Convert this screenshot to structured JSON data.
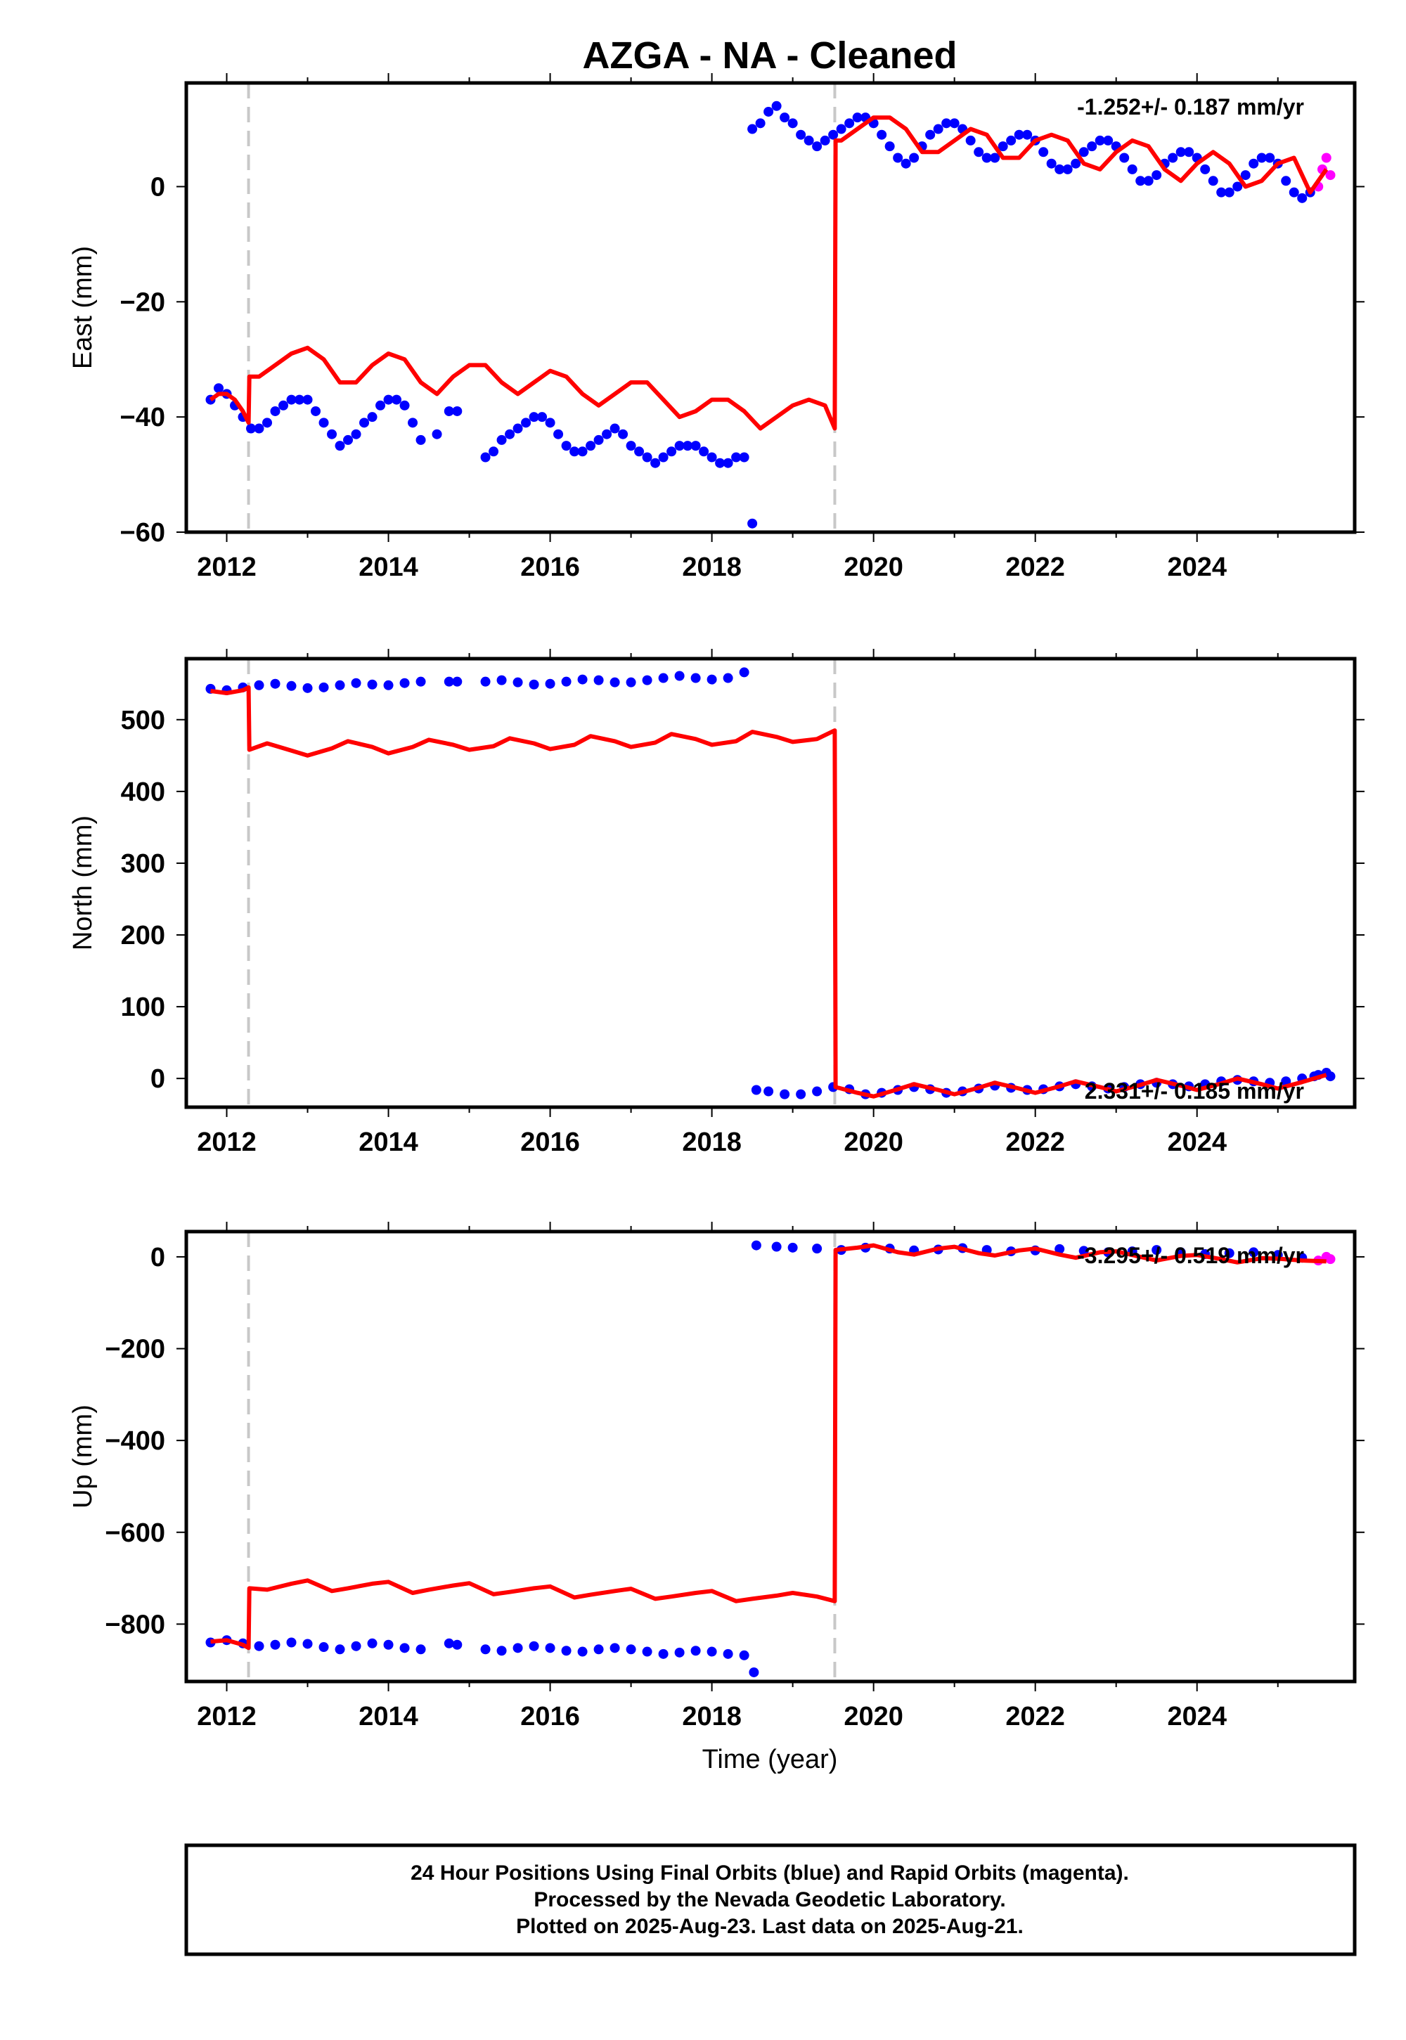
{
  "title": "AZGA  - NA - Cleaned",
  "xlabel": "Time (year)",
  "colors": {
    "final": "#0000ff",
    "rapid": "#ff00ff",
    "model": "#ff0000",
    "break": "#c8c8c8"
  },
  "chart_data": [
    {
      "type": "scatter",
      "ylabel": "East (mm)",
      "rate_text": "-1.252+/- 0.187 mm/yr",
      "xlim": [
        2011.5,
        2025.95
      ],
      "ylim": [
        -60,
        18
      ],
      "xticks": [
        "2012",
        "2014",
        "2016",
        "2018",
        "2020",
        "2022",
        "2024"
      ],
      "yticks": [
        "0",
        "−20",
        "−40",
        "−60"
      ],
      "breaks": [
        2012.27,
        2019.52
      ],
      "series": [
        {
          "x": [
            2011.8,
            2011.9,
            2012.0,
            2012.1,
            2012.2,
            2012.3,
            2012.4,
            2012.5,
            2012.6,
            2012.7,
            2012.8,
            2012.9,
            2013.0,
            2013.1,
            2013.2,
            2013.3,
            2013.4,
            2013.5,
            2013.6,
            2013.7,
            2013.8,
            2013.9,
            2014.0,
            2014.1,
            2014.2,
            2014.3,
            2014.4,
            2014.6,
            2014.75,
            2014.85,
            2015.2,
            2015.3,
            2015.4,
            2015.5,
            2015.6,
            2015.7,
            2015.8,
            2015.9,
            2016.0,
            2016.1,
            2016.2,
            2016.3,
            2016.4,
            2016.5,
            2016.6,
            2016.7,
            2016.8,
            2016.9,
            2017.0,
            2017.1,
            2017.2,
            2017.3,
            2017.4,
            2017.5,
            2017.6,
            2017.7,
            2017.8,
            2017.9,
            2018.0,
            2018.1,
            2018.2,
            2018.3,
            2018.4,
            2018.5,
            2018.6,
            2018.7,
            2018.8,
            2018.9,
            2019.0,
            2019.1,
            2019.2,
            2019.3,
            2019.4,
            2019.5,
            2019.6,
            2019.7,
            2019.8,
            2019.9,
            2020.0,
            2020.1,
            2020.2,
            2020.3,
            2020.4,
            2020.5,
            2020.6,
            2020.7,
            2020.8,
            2020.9,
            2021.0,
            2021.1,
            2021.2,
            2021.3,
            2021.4,
            2021.5,
            2021.6,
            2021.7,
            2021.8,
            2021.9,
            2022.0,
            2022.1,
            2022.2,
            2022.3,
            2022.4,
            2022.5,
            2022.6,
            2022.7,
            2022.8,
            2022.9,
            2023.0,
            2023.1,
            2023.2,
            2023.3,
            2023.4,
            2023.5,
            2023.6,
            2023.7,
            2023.8,
            2023.9,
            2024.0,
            2024.1,
            2024.2,
            2024.3,
            2024.4,
            2024.5,
            2024.6,
            2024.7,
            2024.8,
            2024.9,
            2025.0,
            2025.1,
            2025.2,
            2025.3,
            2025.4
          ],
          "y": [
            -37,
            -35,
            -36,
            -38,
            -40,
            -42,
            -42,
            -41,
            -39,
            -38,
            -37,
            -37,
            -37,
            -39,
            -41,
            -43,
            -45,
            -44,
            -43,
            -41,
            -40,
            -38,
            -37,
            -37,
            -38,
            -41,
            -44,
            -43,
            -39,
            -39,
            -47,
            -46,
            -44,
            -43,
            -42,
            -41,
            -40,
            -40,
            -41,
            -43,
            -45,
            -46,
            -46,
            -45,
            -44,
            -43,
            -42,
            -43,
            -45,
            -46,
            -47,
            -48,
            -47,
            -46,
            -45,
            -45,
            -45,
            -46,
            -47,
            -48,
            -48,
            -47,
            -47,
            10,
            11,
            13,
            14,
            12,
            11,
            9,
            8,
            7,
            8,
            9,
            10,
            11,
            12,
            12,
            11,
            9,
            7,
            5,
            4,
            5,
            7,
            9,
            10,
            11,
            11,
            10,
            8,
            6,
            5,
            5,
            7,
            8,
            9,
            9,
            8,
            6,
            4,
            3,
            3,
            4,
            6,
            7,
            8,
            8,
            7,
            5,
            3,
            1,
            1,
            2,
            4,
            5,
            6,
            6,
            5,
            3,
            1,
            -1,
            -1,
            0,
            2,
            4,
            5,
            5,
            4,
            1,
            -1,
            -2,
            -1
          ]
        },
        {
          "x": [
            2018.5
          ],
          "y": [
            -58.5
          ]
        },
        {
          "x": [
            2025.5,
            2025.55,
            2025.6,
            2025.65
          ],
          "y": [
            0,
            3,
            5,
            2
          ]
        }
      ],
      "model": {
        "x": [
          2011.8,
          2011.9,
          2012.0,
          2012.1,
          2012.2,
          2012.27,
          2012.28,
          2012.4,
          2012.6,
          2012.8,
          2013.0,
          2013.2,
          2013.4,
          2013.6,
          2013.8,
          2014.0,
          2014.2,
          2014.4,
          2014.6,
          2014.8,
          2015.0,
          2015.2,
          2015.4,
          2015.6,
          2015.8,
          2016.0,
          2016.2,
          2016.4,
          2016.6,
          2016.8,
          2017.0,
          2017.2,
          2017.4,
          2017.6,
          2017.8,
          2018.0,
          2018.2,
          2018.4,
          2018.6,
          2018.8,
          2019.0,
          2019.2,
          2019.4,
          2019.52,
          2019.53,
          2019.6,
          2019.8,
          2020.0,
          2020.2,
          2020.4,
          2020.6,
          2020.8,
          2021.0,
          2021.2,
          2021.4,
          2021.6,
          2021.8,
          2022.0,
          2022.2,
          2022.4,
          2022.6,
          2022.8,
          2023.0,
          2023.2,
          2023.4,
          2023.6,
          2023.8,
          2024.0,
          2024.2,
          2024.4,
          2024.6,
          2024.8,
          2025.0,
          2025.2,
          2025.4,
          2025.6
        ],
        "y": [
          -37,
          -36,
          -36,
          -37,
          -39,
          -41,
          -33,
          -33,
          -31,
          -29,
          -28,
          -30,
          -34,
          -34,
          -31,
          -29,
          -30,
          -34,
          -36,
          -33,
          -31,
          -31,
          -34,
          -36,
          -34,
          -32,
          -33,
          -36,
          -38,
          -36,
          -34,
          -34,
          -37,
          -40,
          -39,
          -37,
          -37,
          -39,
          -42,
          -40,
          -38,
          -37,
          -38,
          -42,
          8,
          8,
          10,
          12,
          12,
          10,
          6,
          6,
          8,
          10,
          9,
          5,
          5,
          8,
          9,
          8,
          4,
          3,
          6,
          8,
          7,
          3,
          1,
          4,
          6,
          4,
          0,
          1,
          4,
          5,
          -1,
          3
        ]
      }
    },
    {
      "type": "scatter",
      "ylabel": "North (mm)",
      "rate_text": "2.331+/- 0.185 mm/yr",
      "xlim": [
        2011.5,
        2025.95
      ],
      "ylim": [
        -40,
        585
      ],
      "xticks": [
        "2012",
        "2014",
        "2016",
        "2018",
        "2020",
        "2022",
        "2024"
      ],
      "yticks": [
        "500",
        "400",
        "300",
        "200",
        "100",
        "0"
      ],
      "breaks": [
        2012.27,
        2019.52
      ],
      "series": [
        {
          "x": [
            2011.8,
            2012.0,
            2012.2,
            2012.4,
            2012.6,
            2012.8,
            2013.0,
            2013.2,
            2013.4,
            2013.6,
            2013.8,
            2014.0,
            2014.2,
            2014.4,
            2014.75,
            2014.85,
            2015.2,
            2015.4,
            2015.6,
            2015.8,
            2016.0,
            2016.2,
            2016.4,
            2016.6,
            2016.8,
            2017.0,
            2017.2,
            2017.4,
            2017.6,
            2017.8,
            2018.0,
            2018.2,
            2018.4,
            2018.55,
            2018.7,
            2018.9,
            2019.1,
            2019.3,
            2019.5,
            2019.7,
            2019.9,
            2020.1,
            2020.3,
            2020.5,
            2020.7,
            2020.9,
            2021.1,
            2021.3,
            2021.5,
            2021.7,
            2021.9,
            2022.1,
            2022.3,
            2022.5,
            2022.7,
            2022.9,
            2023.1,
            2023.3,
            2023.5,
            2023.7,
            2023.9,
            2024.1,
            2024.3,
            2024.5,
            2024.7,
            2024.9,
            2025.1,
            2025.3,
            2025.45
          ],
          "y": [
            543,
            541,
            545,
            548,
            550,
            547,
            544,
            545,
            548,
            551,
            549,
            548,
            551,
            553,
            553,
            553,
            553,
            555,
            552,
            549,
            550,
            553,
            556,
            555,
            552,
            552,
            555,
            558,
            561,
            558,
            556,
            558,
            566,
            -16,
            -18,
            -22,
            -22,
            -18,
            -12,
            -15,
            -22,
            -20,
            -16,
            -12,
            -15,
            -20,
            -18,
            -14,
            -10,
            -13,
            -16,
            -15,
            -11,
            -8,
            -11,
            -14,
            -12,
            -8,
            -6,
            -8,
            -11,
            -8,
            -4,
            -2,
            -4,
            -6,
            -4,
            0,
            3
          ]
        },
        {
          "x": [
            2025.5,
            2025.6,
            2025.65
          ],
          "y": [
            5,
            8,
            3
          ]
        }
      ],
      "model": {
        "x": [
          2011.8,
          2012.0,
          2012.2,
          2012.27,
          2012.28,
          2012.5,
          2012.8,
          2013.0,
          2013.3,
          2013.5,
          2013.8,
          2014.0,
          2014.3,
          2014.5,
          2014.8,
          2015.0,
          2015.3,
          2015.5,
          2015.8,
          2016.0,
          2016.3,
          2016.5,
          2016.8,
          2017.0,
          2017.3,
          2017.5,
          2017.8,
          2018.0,
          2018.3,
          2018.5,
          2018.8,
          2019.0,
          2019.3,
          2019.52,
          2019.53,
          2019.8,
          2020.0,
          2020.3,
          2020.5,
          2020.8,
          2021.0,
          2021.3,
          2021.5,
          2021.8,
          2022.0,
          2022.3,
          2022.5,
          2022.8,
          2023.0,
          2023.3,
          2023.5,
          2023.8,
          2024.0,
          2024.3,
          2024.5,
          2024.8,
          2025.0,
          2025.3,
          2025.6
        ],
        "y": [
          540,
          537,
          541,
          545,
          458,
          467,
          457,
          450,
          460,
          470,
          462,
          453,
          462,
          472,
          465,
          458,
          463,
          474,
          467,
          459,
          465,
          477,
          470,
          462,
          468,
          480,
          473,
          465,
          470,
          483,
          476,
          469,
          473,
          485,
          -12,
          -20,
          -25,
          -15,
          -8,
          -16,
          -22,
          -13,
          -6,
          -14,
          -20,
          -11,
          -4,
          -12,
          -18,
          -9,
          -2,
          -10,
          -16,
          -7,
          0,
          -8,
          -14,
          -5,
          5
        ]
      }
    },
    {
      "type": "scatter",
      "ylabel": "Up (mm)",
      "rate_text": "-3.295+/- 0.519 mm/yr",
      "xlim": [
        2011.5,
        2025.95
      ],
      "ylim": [
        -925,
        55
      ],
      "xticks": [
        "2012",
        "2014",
        "2016",
        "2018",
        "2020",
        "2022",
        "2024"
      ],
      "yticks": [
        "0",
        "−200",
        "−400",
        "−600",
        "−800"
      ],
      "breaks": [
        2012.27,
        2019.52
      ],
      "series": [
        {
          "x": [
            2011.8,
            2012.0,
            2012.2,
            2012.4,
            2012.6,
            2012.8,
            2013.0,
            2013.2,
            2013.4,
            2013.6,
            2013.8,
            2014.0,
            2014.2,
            2014.4,
            2014.75,
            2014.85,
            2015.2,
            2015.4,
            2015.6,
            2015.8,
            2016.0,
            2016.2,
            2016.4,
            2016.6,
            2016.8,
            2017.0,
            2017.2,
            2017.4,
            2017.6,
            2017.8,
            2018.0,
            2018.2,
            2018.4,
            2018.55,
            2018.8,
            2019.0,
            2019.3,
            2019.6,
            2019.9,
            2020.2,
            2020.5,
            2020.8,
            2021.1,
            2021.4,
            2021.7,
            2022.0,
            2022.3,
            2022.6,
            2022.9,
            2023.2,
            2023.5,
            2023.8,
            2024.1,
            2024.4,
            2024.7,
            2025.0,
            2025.3
          ],
          "y": [
            -840,
            -835,
            -842,
            -848,
            -845,
            -840,
            -843,
            -850,
            -855,
            -848,
            -842,
            -845,
            -852,
            -855,
            -842,
            -845,
            -855,
            -858,
            -852,
            -848,
            -852,
            -858,
            -860,
            -855,
            -852,
            -855,
            -860,
            -865,
            -862,
            -858,
            -860,
            -865,
            -868,
            25,
            22,
            20,
            18,
            15,
            20,
            18,
            14,
            16,
            19,
            15,
            12,
            14,
            17,
            13,
            10,
            12,
            15,
            10,
            6,
            8,
            10,
            4,
            -2
          ]
        },
        {
          "x": [
            2018.52
          ],
          "y": [
            -905
          ]
        },
        {
          "x": [
            2025.5,
            2025.6,
            2025.65
          ],
          "y": [
            -8,
            0,
            -5
          ]
        }
      ],
      "model": {
        "x": [
          2011.8,
          2012.0,
          2012.2,
          2012.27,
          2012.28,
          2012.5,
          2012.8,
          2013.0,
          2013.3,
          2013.5,
          2013.8,
          2014.0,
          2014.3,
          2014.5,
          2014.8,
          2015.0,
          2015.3,
          2015.5,
          2015.8,
          2016.0,
          2016.3,
          2016.5,
          2016.8,
          2017.0,
          2017.3,
          2017.5,
          2017.8,
          2018.0,
          2018.3,
          2018.5,
          2018.8,
          2019.0,
          2019.3,
          2019.52,
          2019.53,
          2019.8,
          2020.0,
          2020.3,
          2020.5,
          2020.8,
          2021.0,
          2021.3,
          2021.5,
          2021.8,
          2022.0,
          2022.3,
          2022.5,
          2022.8,
          2023.0,
          2023.3,
          2023.5,
          2023.8,
          2024.0,
          2024.3,
          2024.5,
          2024.8,
          2025.0,
          2025.3,
          2025.6
        ],
        "y": [
          -838,
          -835,
          -845,
          -852,
          -722,
          -725,
          -712,
          -705,
          -728,
          -722,
          -712,
          -708,
          -732,
          -725,
          -716,
          -711,
          -735,
          -730,
          -722,
          -718,
          -742,
          -736,
          -728,
          -723,
          -745,
          -740,
          -732,
          -728,
          -750,
          -745,
          -738,
          -732,
          -740,
          -750,
          15,
          20,
          25,
          10,
          5,
          18,
          22,
          8,
          3,
          14,
          18,
          5,
          -2,
          10,
          12,
          0,
          -8,
          2,
          4,
          -5,
          -12,
          -3,
          -4,
          -8,
          -10
        ]
      }
    }
  ],
  "footer": {
    "line1": "24 Hour Positions Using Final Orbits (blue) and Rapid Orbits (magenta).",
    "line2": "Processed by the Nevada Geodetic Laboratory.",
    "line3": "Plotted on 2025-Aug-23. Last data on 2025-Aug-21."
  }
}
